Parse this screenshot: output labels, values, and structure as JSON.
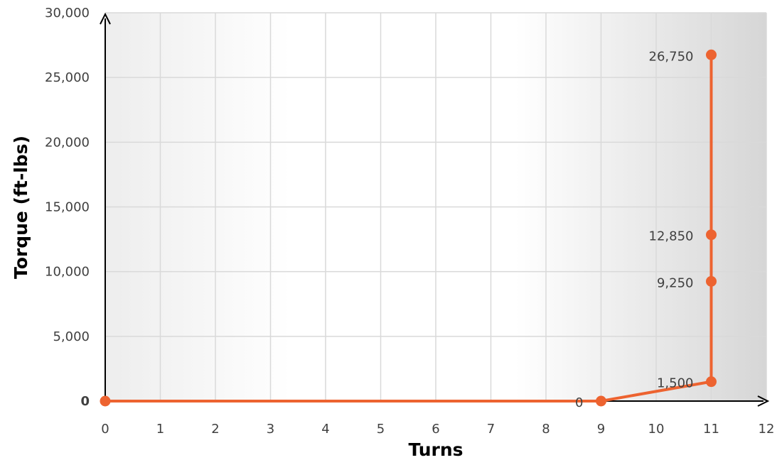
{
  "chart_data": {
    "type": "line",
    "title": "",
    "xlabel": "Turns",
    "ylabel": "Torque (ft-lbs)",
    "xlim": [
      0,
      12
    ],
    "ylim": [
      0,
      30000
    ],
    "x_ticks": [
      "0",
      "1",
      "2",
      "3",
      "4",
      "5",
      "6",
      "7",
      "8",
      "9",
      "10",
      "11",
      "12"
    ],
    "y_ticks": [
      "0",
      "5,000",
      "10,000",
      "15,000",
      "20,000",
      "25,000",
      "30,000"
    ],
    "grid": true,
    "series": [
      {
        "color": "#ED6330",
        "points": [
          {
            "x": 0,
            "y": 0,
            "label": ""
          },
          {
            "x": 9,
            "y": 0,
            "label": "0"
          },
          {
            "x": 11,
            "y": 1500,
            "label": "1,500"
          },
          {
            "x": 11,
            "y": 9250,
            "label": "9,250"
          },
          {
            "x": 11,
            "y": 12850,
            "label": "12,850"
          },
          {
            "x": 11,
            "y": 26750,
            "label": "26,750"
          }
        ]
      }
    ],
    "colors": {
      "axis": "#000000",
      "grid": "#D9D9D9",
      "tick_text": "#404040",
      "axis_title": "#595959",
      "plot_bg_start": "#EDEDED",
      "plot_bg_mid": "#FFFFFF",
      "plot_bg_end": "#D6D6D6"
    }
  }
}
